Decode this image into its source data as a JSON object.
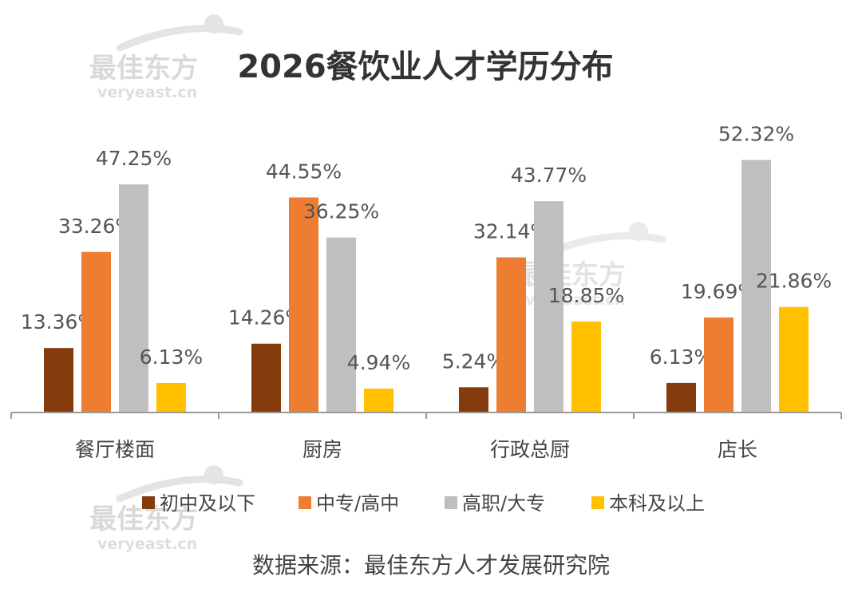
{
  "chart_data": {
    "type": "bar",
    "title": "2026餐饮业人才学历分布",
    "categories": [
      "餐厅楼面",
      "厨房",
      "行政总厨",
      "店长"
    ],
    "series": [
      {
        "name": "初中及以下",
        "color": "#843C0C",
        "values": [
          13.36,
          14.26,
          5.24,
          6.13
        ],
        "labels": [
          "13.36%",
          "14.26%",
          "5.24%",
          "6.13%"
        ]
      },
      {
        "name": "中专/高中",
        "color": "#ED7D31",
        "values": [
          33.26,
          44.55,
          32.14,
          19.69
        ],
        "labels": [
          "33.26%",
          "44.55%",
          "32.14%",
          "19.69%"
        ]
      },
      {
        "name": "高职/大专",
        "color": "#BFBFBF",
        "values": [
          47.25,
          36.25,
          43.77,
          52.32
        ],
        "labels": [
          "47.25%",
          "36.25%",
          "43.77%",
          "52.32%"
        ]
      },
      {
        "name": "本科及以上",
        "color": "#FFC000",
        "values": [
          6.13,
          4.94,
          18.85,
          21.86
        ],
        "labels": [
          "6.13%",
          "4.94%",
          "18.85%",
          "21.86%"
        ]
      }
    ],
    "ylim": [
      0,
      60
    ],
    "grid": false,
    "legend_position": "bottom",
    "source": "数据来源：最佳东方人才发展研究院"
  },
  "watermark": {
    "brand": "最佳东方",
    "url": "veryeast.cn"
  }
}
